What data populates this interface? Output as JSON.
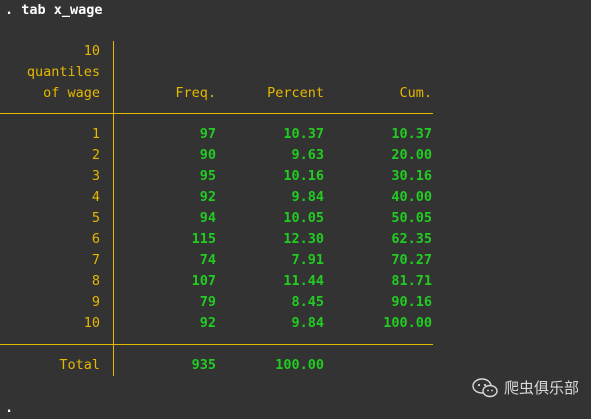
{
  "command_line": ". tab x_wage",
  "table": {
    "row_var_label_lines": [
      "10",
      "quantiles",
      "of wage"
    ],
    "headers": {
      "freq": "Freq.",
      "percent": "Percent",
      "cum": "Cum."
    },
    "rows": [
      {
        "label": "1",
        "freq": "97",
        "percent": "10.37",
        "cum": "10.37"
      },
      {
        "label": "2",
        "freq": "90",
        "percent": "9.63",
        "cum": "20.00"
      },
      {
        "label": "3",
        "freq": "95",
        "percent": "10.16",
        "cum": "30.16"
      },
      {
        "label": "4",
        "freq": "92",
        "percent": "9.84",
        "cum": "40.00"
      },
      {
        "label": "5",
        "freq": "94",
        "percent": "10.05",
        "cum": "50.05"
      },
      {
        "label": "6",
        "freq": "115",
        "percent": "12.30",
        "cum": "62.35"
      },
      {
        "label": "7",
        "freq": "74",
        "percent": "7.91",
        "cum": "70.27"
      },
      {
        "label": "8",
        "freq": "107",
        "percent": "11.44",
        "cum": "81.71"
      },
      {
        "label": "9",
        "freq": "79",
        "percent": "8.45",
        "cum": "90.16"
      },
      {
        "label": "10",
        "freq": "92",
        "percent": "9.84",
        "cum": "100.00"
      }
    ],
    "total": {
      "label": "Total",
      "freq": "935",
      "percent": "100.00"
    }
  },
  "prompt": ".",
  "watermark": {
    "icon": "wechat-icon",
    "text": "爬虫俱乐部"
  },
  "colors": {
    "background": "#333333",
    "label_yellow": "#e6b800",
    "value_green": "#22cc22",
    "command_white": "#ffffff"
  }
}
